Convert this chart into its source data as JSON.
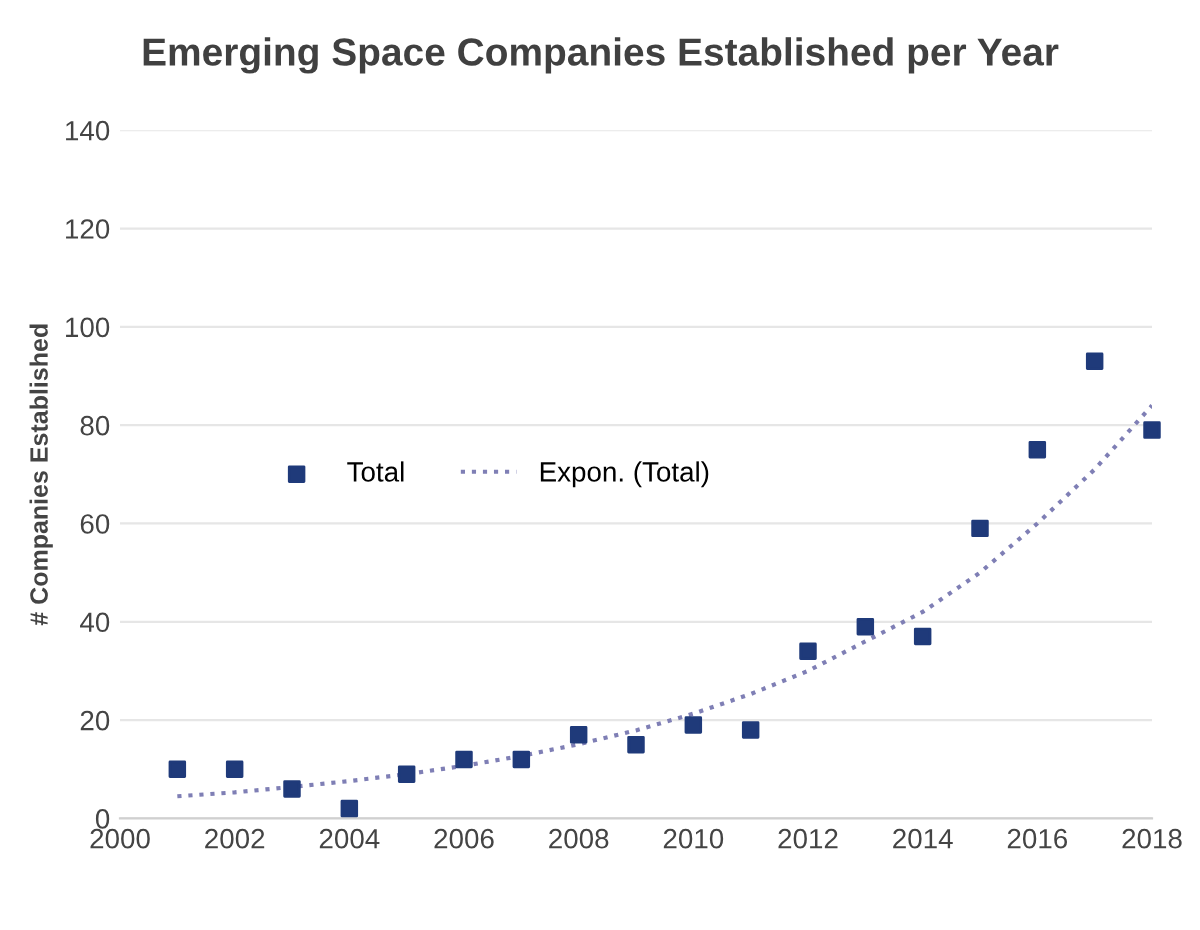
{
  "chart_data": {
    "type": "scatter",
    "title": "Emerging Space Companies Established per Year",
    "ylabel": "# Companies Established",
    "series": [
      {
        "name": "Total",
        "marker": "square",
        "color": "#1f3a7a",
        "x": [
          2001,
          2002,
          2003,
          2004,
          2005,
          2006,
          2007,
          2008,
          2009,
          2010,
          2011,
          2012,
          2013,
          2014,
          2015,
          2016,
          2017,
          2018
        ],
        "values": [
          10,
          10,
          6,
          2,
          9,
          12,
          12,
          17,
          15,
          19,
          18,
          34,
          39,
          37,
          59,
          75,
          93,
          79
        ]
      },
      {
        "name": "Expon. (Total)",
        "type": "line",
        "line_style": "dotted",
        "color": "#7f7fb5",
        "x": [
          2001,
          2002,
          2003,
          2004,
          2005,
          2006,
          2007,
          2008,
          2009,
          2010,
          2011,
          2012,
          2013,
          2014,
          2015,
          2016,
          2017,
          2018
        ],
        "values": [
          4.5,
          5.3,
          6.4,
          7.6,
          9.0,
          10.7,
          12.7,
          15.1,
          17.9,
          21.3,
          25.3,
          30,
          36,
          42,
          50,
          60,
          71,
          84
        ]
      }
    ],
    "xlim": [
      2000,
      2018
    ],
    "xticks": [
      2000,
      2002,
      2004,
      2006,
      2008,
      2010,
      2012,
      2014,
      2016,
      2018
    ],
    "ylim": [
      0,
      140
    ],
    "yticks": [
      0,
      20,
      40,
      60,
      80,
      100,
      120,
      140
    ],
    "grid": "y",
    "legend": "center left"
  }
}
